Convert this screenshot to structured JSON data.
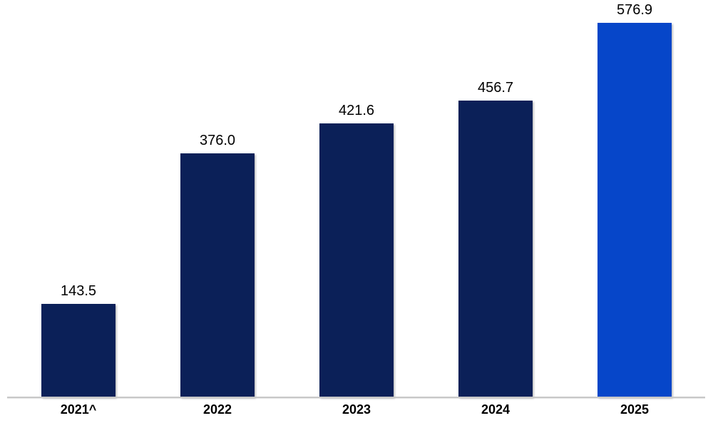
{
  "chart_data": {
    "type": "bar",
    "title": "",
    "xlabel": "",
    "ylabel": "",
    "categories": [
      "2021^",
      "2022",
      "2023",
      "2024",
      "2025"
    ],
    "values": [
      143.5,
      376.0,
      421.6,
      456.7,
      576.9
    ],
    "value_labels": [
      "143.5",
      "376.0",
      "421.6",
      "456.7",
      "576.9"
    ],
    "bar_colors": [
      "#0B2058",
      "#0B2058",
      "#0B2058",
      "#0B2058",
      "#0646C9"
    ],
    "default_bar_color": "#0B2058",
    "highlight_bar_color": "#0646C9",
    "value_label_color": "#000000",
    "category_label_color": "#000000",
    "axis_line_color": "#C8C8C8",
    "ylim": [
      0,
      612
    ],
    "grid": false,
    "legend": false,
    "y_axis_visible": false,
    "x_axis_baseline_visible": true
  }
}
